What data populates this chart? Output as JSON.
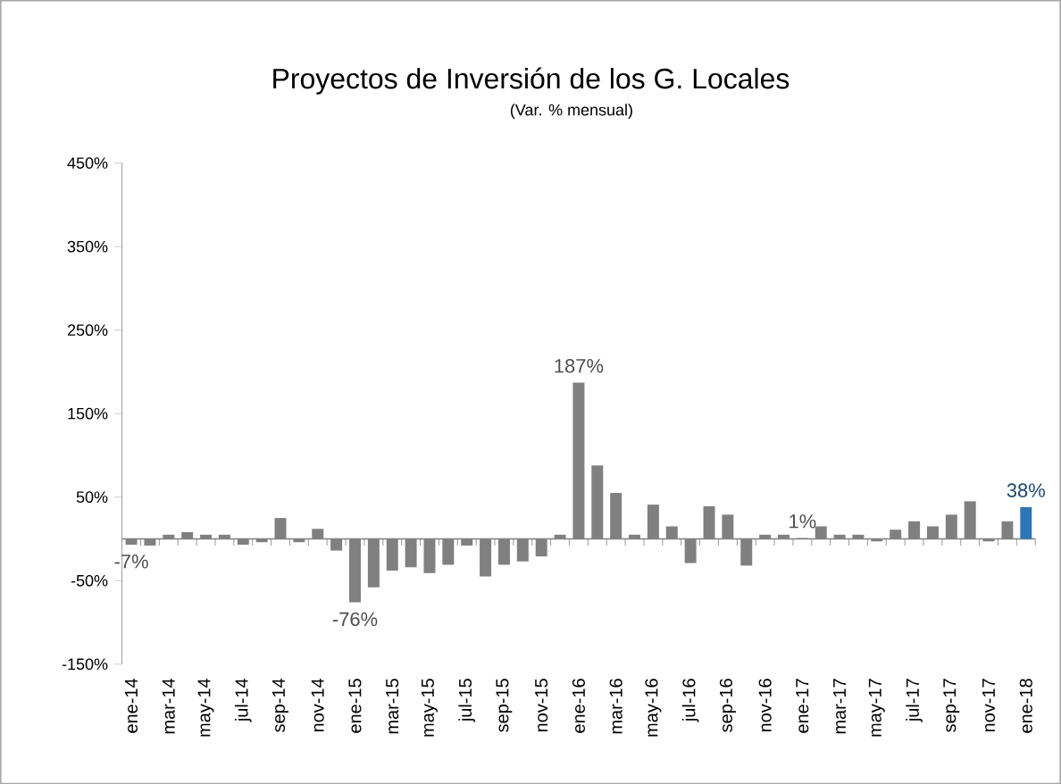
{
  "chart_data": {
    "type": "bar",
    "title": "Proyectos de Inversión de los G. Locales",
    "subtitle": "(Var. % mensual)",
    "categories": [
      "ene-14",
      null,
      "mar-14",
      null,
      "may-14",
      null,
      "jul-14",
      null,
      "sep-14",
      null,
      "nov-14",
      null,
      "ene-15",
      null,
      "mar-15",
      null,
      "may-15",
      null,
      "jul-15",
      null,
      "sep-15",
      null,
      "nov-15",
      null,
      "ene-16",
      null,
      "mar-16",
      null,
      "may-16",
      null,
      "jul-16",
      null,
      "sep-16",
      null,
      "nov-16",
      null,
      "ene-17",
      null,
      "mar-17",
      null,
      "may-17",
      null,
      "jul-17",
      null,
      "sep-17",
      null,
      "nov-17",
      null,
      "ene-18"
    ],
    "values": [
      -7,
      -8,
      5,
      8,
      5,
      5,
      -7,
      -4,
      25,
      -4,
      12,
      -14,
      -76,
      -58,
      -38,
      -34,
      -41,
      -31,
      -8,
      -45,
      -31,
      -27,
      -21,
      5,
      187,
      88,
      55,
      5,
      41,
      15,
      -29,
      39,
      29,
      -32,
      5,
      5,
      1,
      15,
      5,
      5,
      -3,
      11,
      21,
      15,
      29,
      45,
      -3,
      21,
      38
    ],
    "colors": [
      "#808080",
      "#808080",
      "#808080",
      "#808080",
      "#808080",
      "#808080",
      "#808080",
      "#808080",
      "#808080",
      "#808080",
      "#808080",
      "#808080",
      "#808080",
      "#808080",
      "#808080",
      "#808080",
      "#808080",
      "#808080",
      "#808080",
      "#808080",
      "#808080",
      "#808080",
      "#808080",
      "#808080",
      "#808080",
      "#808080",
      "#808080",
      "#808080",
      "#808080",
      "#808080",
      "#808080",
      "#808080",
      "#808080",
      "#808080",
      "#808080",
      "#808080",
      "#808080",
      "#808080",
      "#808080",
      "#808080",
      "#808080",
      "#808080",
      "#808080",
      "#808080",
      "#808080",
      "#808080",
      "#808080",
      "#808080",
      "#2e75b6"
    ],
    "value_labels": [
      "-7%",
      null,
      null,
      null,
      null,
      null,
      null,
      null,
      null,
      null,
      null,
      null,
      "-76%",
      null,
      null,
      null,
      null,
      null,
      null,
      null,
      null,
      null,
      null,
      null,
      "187%",
      null,
      null,
      null,
      null,
      null,
      null,
      null,
      null,
      null,
      null,
      null,
      "1%",
      null,
      null,
      null,
      null,
      null,
      null,
      null,
      null,
      null,
      null,
      null,
      "38%"
    ],
    "ylim": [
      -150,
      450
    ],
    "yticks": [
      {
        "value": 450,
        "label": "450%"
      },
      {
        "value": 350,
        "label": "350%"
      },
      {
        "value": 250,
        "label": "250%"
      },
      {
        "value": 150,
        "label": "150%"
      },
      {
        "value": 50,
        "label": "50%"
      },
      {
        "value": -50,
        "label": "-50%"
      },
      {
        "value": -150,
        "label": "-150%"
      }
    ],
    "grid": false
  }
}
